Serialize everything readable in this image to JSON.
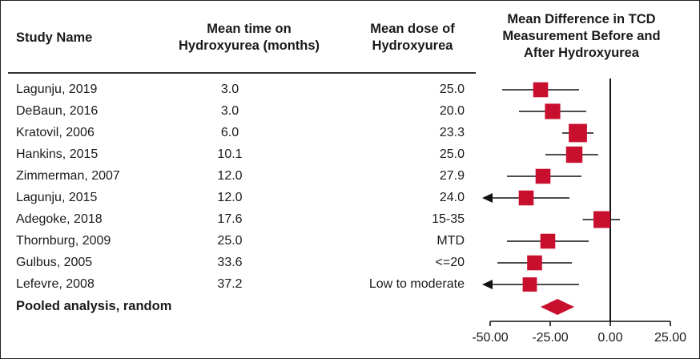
{
  "columns": {
    "study_name": "Study Name",
    "time_line1": "Mean time on",
    "time_line2": "Hydroxyurea (months)",
    "dose_line1": "Mean dose of",
    "dose_line2": "Hydroxyurea",
    "diff_line1": "Mean Difference in TCD",
    "diff_line2": "Measurement Before and",
    "diff_line3": "After Hydroxyurea"
  },
  "studies": [
    {
      "name": "Lagunju, 2019",
      "time": "3.0",
      "dose": "25.0"
    },
    {
      "name": "DeBaun, 2016",
      "time": "3.0",
      "dose": "20.0"
    },
    {
      "name": "Kratovil, 2006",
      "time": "6.0",
      "dose": "23.3"
    },
    {
      "name": "Hankins, 2015",
      "time": "10.1",
      "dose": "25.0"
    },
    {
      "name": "Zimmerman, 2007",
      "time": "12.0",
      "dose": "27.9"
    },
    {
      "name": "Lagunju, 2015",
      "time": "12.0",
      "dose": "24.0"
    },
    {
      "name": "Adegoke, 2018",
      "time": "17.6",
      "dose": "15-35"
    },
    {
      "name": "Thornburg, 2009",
      "time": "25.0",
      "dose": "MTD"
    },
    {
      "name": "Gulbus, 2005",
      "time": "33.6",
      "dose": "<=20"
    },
    {
      "name": "Lefevre, 2008",
      "time": "37.2",
      "dose": "Low to moderate"
    }
  ],
  "pooled_label": "Pooled analysis, random",
  "chart_data": {
    "type": "forest",
    "xlim": [
      -50,
      25
    ],
    "x_ticks": [
      "-50.00",
      "-25.00",
      "0.00",
      "25.00"
    ],
    "x_tick_values": [
      -50,
      -25,
      0,
      25
    ],
    "reference_line": 0,
    "marker_color": "#c8102e",
    "estimates": [
      {
        "study": "Lagunju, 2019",
        "mean": -29,
        "lower": -45,
        "upper": -13,
        "weight": 0.55,
        "arrow_left": false
      },
      {
        "study": "DeBaun, 2016",
        "mean": -24,
        "lower": -38,
        "upper": -10,
        "weight": 0.6,
        "arrow_left": false
      },
      {
        "study": "Kratovil, 2006",
        "mean": -13.5,
        "lower": -20,
        "upper": -7,
        "weight": 0.9,
        "arrow_left": false
      },
      {
        "study": "Hankins, 2015",
        "mean": -15,
        "lower": -27,
        "upper": -5,
        "weight": 0.7,
        "arrow_left": false
      },
      {
        "study": "Zimmerman, 2007",
        "mean": -28,
        "lower": -43,
        "upper": -12,
        "weight": 0.55,
        "arrow_left": false
      },
      {
        "study": "Lagunju, 2015",
        "mean": -35,
        "lower": -55,
        "upper": -17,
        "weight": 0.55,
        "arrow_left": true
      },
      {
        "study": "Adegoke, 2018",
        "mean": -3.5,
        "lower": -11.5,
        "upper": 4,
        "weight": 0.75,
        "arrow_left": false
      },
      {
        "study": "Thornburg, 2009",
        "mean": -26,
        "lower": -43,
        "upper": -9,
        "weight": 0.55,
        "arrow_left": false
      },
      {
        "study": "Gulbus, 2005",
        "mean": -31.5,
        "lower": -47,
        "upper": -16,
        "weight": 0.55,
        "arrow_left": false
      },
      {
        "study": "Lefevre, 2008",
        "mean": -33.5,
        "lower": -55,
        "upper": -13,
        "weight": 0.48,
        "arrow_left": true
      }
    ],
    "pooled": {
      "mean": -22,
      "lower": -29,
      "upper": -15
    }
  }
}
